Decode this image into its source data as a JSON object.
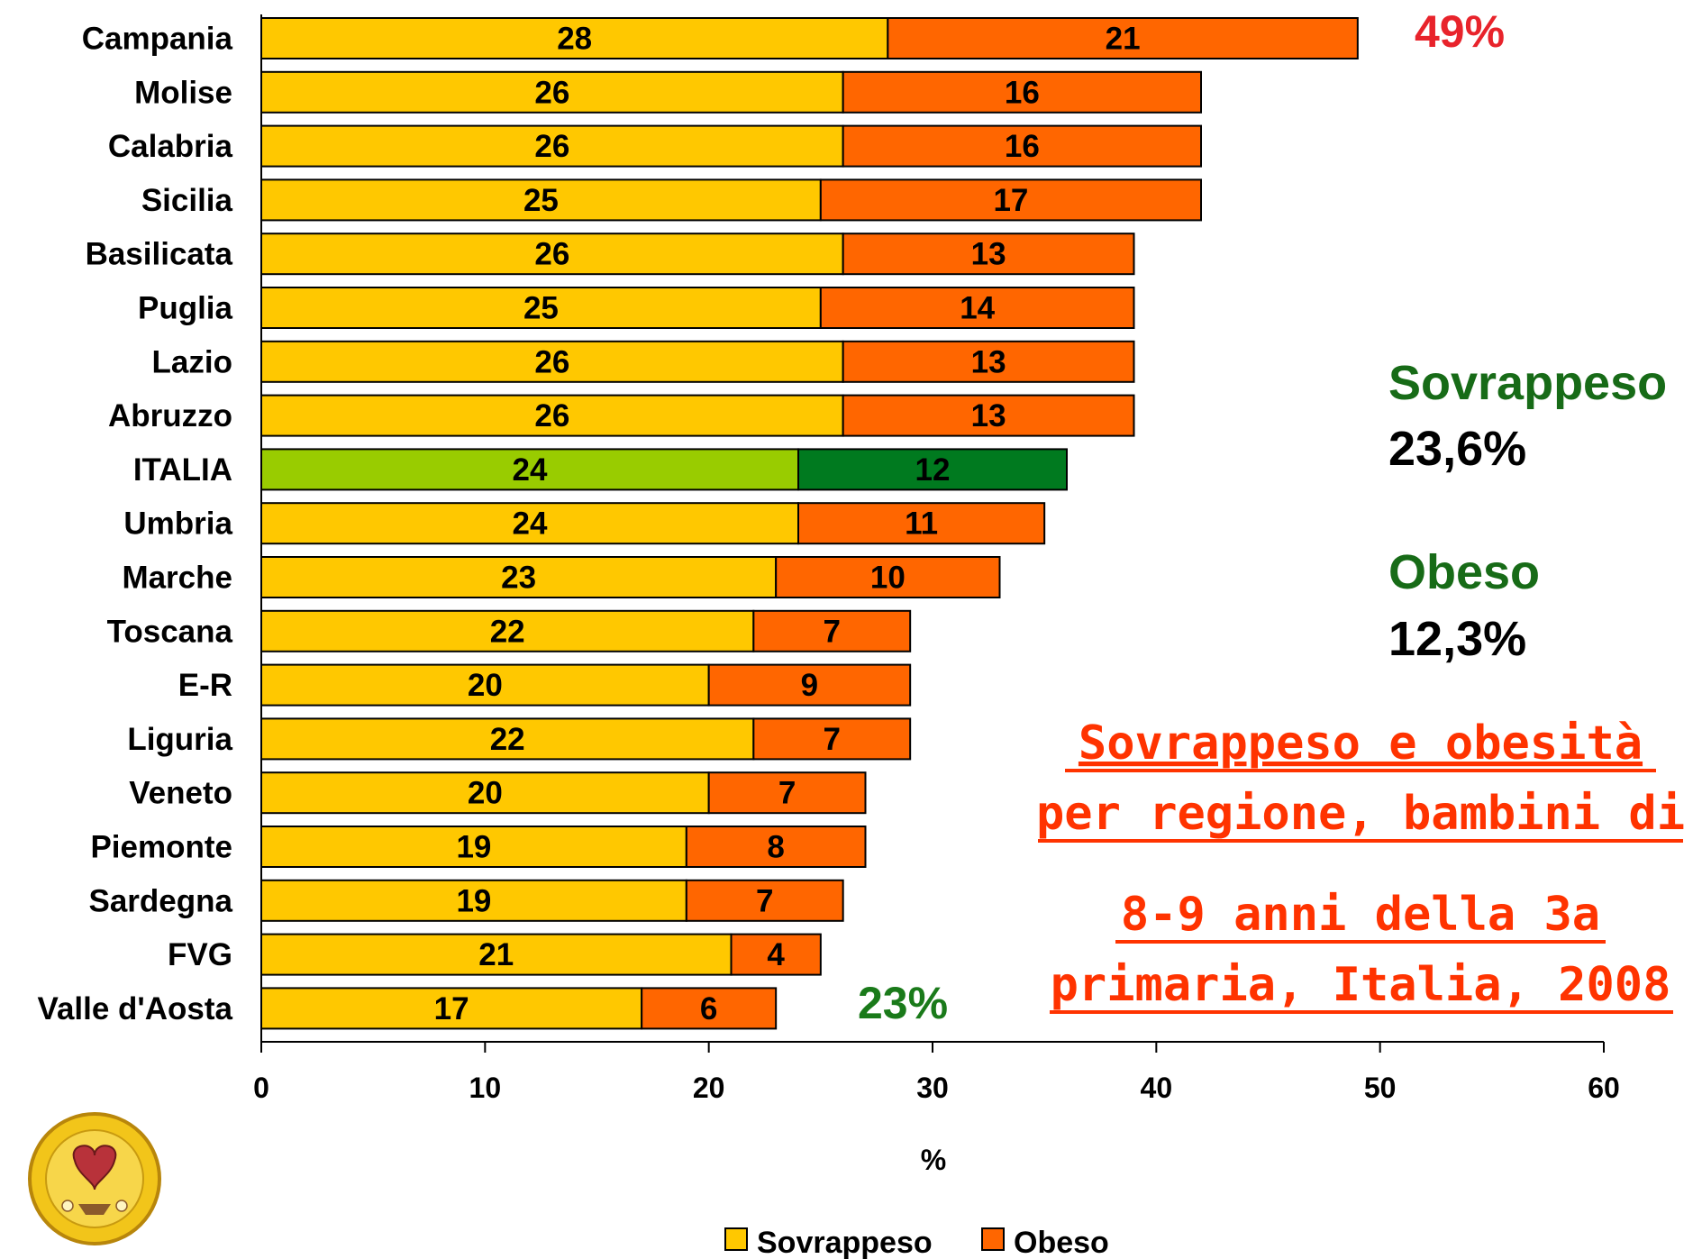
{
  "chart_data": {
    "type": "bar",
    "orientation": "horizontal",
    "stacked": true,
    "categories": [
      "Campania",
      "Molise",
      "Calabria",
      "Sicilia",
      "Basilicata",
      "Puglia",
      "Lazio",
      "Abruzzo",
      "ITALIA",
      "Umbria",
      "Marche",
      "Toscana",
      "E-R",
      "Liguria",
      "Veneto",
      "Piemonte",
      "Sardegna",
      "FVG",
      "Valle d'Aosta"
    ],
    "series": [
      {
        "name": "Sovrappeso",
        "values": [
          28,
          26,
          26,
          25,
          26,
          25,
          26,
          26,
          24,
          24,
          23,
          22,
          20,
          22,
          20,
          19,
          19,
          21,
          17
        ],
        "color": "#ffc800"
      },
      {
        "name": "Obeso",
        "values": [
          21,
          16,
          16,
          17,
          13,
          14,
          13,
          13,
          12,
          11,
          10,
          7,
          9,
          7,
          7,
          8,
          7,
          4,
          6
        ],
        "color": "#ff6600"
      }
    ],
    "highlight": {
      "category": "ITALIA",
      "colors": [
        "#99cc00",
        "#007a1f"
      ]
    },
    "xlim": [
      0,
      60
    ],
    "xticks": [
      0,
      10,
      20,
      30,
      40,
      50,
      60
    ],
    "xlabel": "%",
    "ylabel": "",
    "legend": {
      "position": "bottom",
      "entries": [
        "Sovrappeso",
        "Obeso"
      ]
    },
    "grid": false,
    "annotations": {
      "top_total": "49%",
      "bottom_total": "23%",
      "sovrappeso_title": "Sovrappeso",
      "sovrappeso_value": "23,6%",
      "obeso_title": "Obeso",
      "obeso_value": "12,3%",
      "caption_lines": [
        "Sovrappeso e obesità",
        "per regione, bambini di",
        "8-9 anni della 3a",
        "primaria, Italia, 2008"
      ]
    }
  },
  "colors": {
    "sovrappeso": "#ffc800",
    "obeso": "#ff6600",
    "italia_sovrappeso": "#99cc00",
    "italia_obeso": "#007a1f",
    "red_annotation": "#e8232b",
    "green_annotation": "#1a7a1a",
    "caption": "#ff3300"
  },
  "logo": {
    "icon": "circular-seal-logo"
  }
}
